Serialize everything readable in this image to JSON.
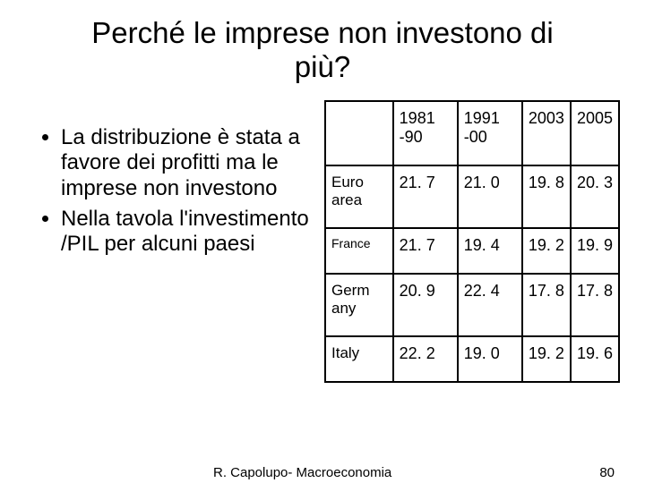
{
  "title_line1": "Perché le imprese non investono di",
  "title_line2": "più?",
  "bullets": {
    "item1": "La distribuzione è stata a favore dei profitti ma le imprese non investono",
    "item2": "Nella tavola l'investimento /PIL per alcuni paesi"
  },
  "table": {
    "head": {
      "c0": "",
      "c1": "1981 -90",
      "c2": "1991 -00",
      "c3": "2003",
      "c4": "2005"
    },
    "rows": [
      {
        "label": "Euro area",
        "label_class": "rowhead",
        "v1": "21. 7",
        "v2": "21. 0",
        "v3": "19. 8",
        "v4": "20. 3"
      },
      {
        "label": "France",
        "label_class": "small",
        "v1": "21. 7",
        "v2": "19. 4",
        "v3": "19. 2",
        "v4": "19. 9"
      },
      {
        "label": "Germ any",
        "label_class": "rowhead",
        "v1": "20. 9",
        "v2": "22. 4",
        "v3": "17. 8",
        "v4": "17. 8"
      },
      {
        "label": "Italy",
        "label_class": "rowhead",
        "v1": "22. 2",
        "v2": "19. 0",
        "v3": "19. 2",
        "v4": "19. 6"
      }
    ]
  },
  "footer": {
    "author": "R. Capolupo- Macroeconomia",
    "page": "80"
  },
  "colors": {
    "text": "#000000",
    "background": "#ffffff",
    "border": "#000000"
  }
}
